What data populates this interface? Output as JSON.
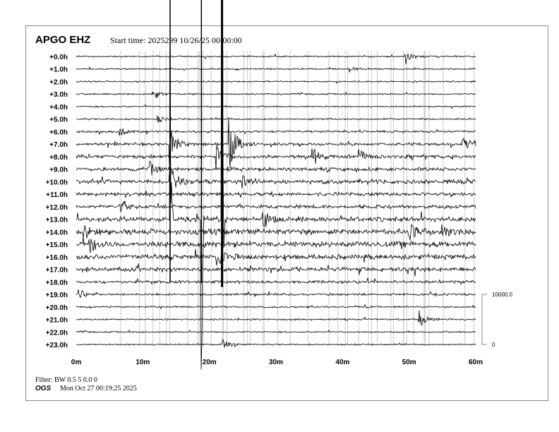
{
  "header": {
    "station": "APGO EHZ",
    "start_time": "Start time: 2025299 10/26/25 00:00:00"
  },
  "footer": {
    "filter": "Filter: BW 0.5 5 0.0 0",
    "org": "OGS",
    "generated": "Mon Oct 27 00:19:25 2025"
  },
  "chart_data": {
    "type": "line",
    "row_labels": [
      "+0.0h",
      "+1.0h",
      "+2.0h",
      "+3.0h",
      "+4.0h",
      "+5.0h",
      "+6.0h",
      "+7.0h",
      "+8.0h",
      "+9.0h",
      "+10.0h",
      "+11.0h",
      "+12.0h",
      "+13.0h",
      "+14.0h",
      "+15.0h",
      "+16.0h",
      "+17.0h",
      "+18.0h",
      "+19.0h",
      "+20.0h",
      "+21.0h",
      "+22.0h",
      "+23.0h"
    ],
    "x_ticks": [
      "0m",
      "10m",
      "20m",
      "30m",
      "40m",
      "50m",
      "60m"
    ],
    "xlim": [
      0,
      60
    ],
    "scale_bar": {
      "top": "10000.0",
      "bottom": "0"
    },
    "noise_level": [
      1,
      1,
      1,
      1,
      1,
      1.2,
      1.5,
      2,
      2.5,
      2.5,
      3,
      2.5,
      2.5,
      3.5,
      4,
      4,
      3.5,
      3,
      2,
      1.5,
      1.2,
      1.2,
      1,
      1
    ],
    "events": [
      {
        "hour": 0,
        "minute": 49.5,
        "amp": 10
      },
      {
        "hour": 1,
        "minute": 41,
        "amp": 4
      },
      {
        "hour": 3,
        "minute": 11.5,
        "amp": 10
      },
      {
        "hour": 5,
        "minute": 12,
        "amp": 6
      },
      {
        "hour": 6,
        "minute": 6.5,
        "amp": 10
      },
      {
        "hour": 7,
        "minute": 14,
        "amp": 30
      },
      {
        "hour": 7,
        "minute": 23,
        "amp": 40
      },
      {
        "hour": 7,
        "minute": 58,
        "amp": 12
      },
      {
        "hour": 8,
        "minute": 21,
        "amp": 18
      },
      {
        "hour": 8,
        "minute": 35.5,
        "amp": 14
      },
      {
        "hour": 8,
        "minute": 42.5,
        "amp": 10
      },
      {
        "hour": 9,
        "minute": 11,
        "amp": 12
      },
      {
        "hour": 10,
        "minute": 14,
        "amp": 25
      },
      {
        "hour": 10,
        "minute": 25,
        "amp": 12
      },
      {
        "hour": 12,
        "minute": 6.5,
        "amp": 10
      },
      {
        "hour": 13,
        "minute": 14.1,
        "amp": 300
      },
      {
        "hour": 13,
        "minute": 18.8,
        "amp": 300
      },
      {
        "hour": 13,
        "minute": 21.9,
        "amp": 320
      },
      {
        "hour": 13,
        "minute": 28,
        "amp": 14
      },
      {
        "hour": 14,
        "minute": 1,
        "amp": 10
      },
      {
        "hour": 14,
        "minute": 50,
        "amp": 12
      },
      {
        "hour": 14,
        "minute": 55,
        "amp": 12
      },
      {
        "hour": 15,
        "minute": 2,
        "amp": 12
      },
      {
        "hour": 16,
        "minute": 21,
        "amp": 18
      },
      {
        "hour": 19,
        "minute": 0.3,
        "amp": 8
      },
      {
        "hour": 21,
        "minute": 51.5,
        "amp": 12
      },
      {
        "hour": 23,
        "minute": 22,
        "amp": 8
      }
    ]
  }
}
